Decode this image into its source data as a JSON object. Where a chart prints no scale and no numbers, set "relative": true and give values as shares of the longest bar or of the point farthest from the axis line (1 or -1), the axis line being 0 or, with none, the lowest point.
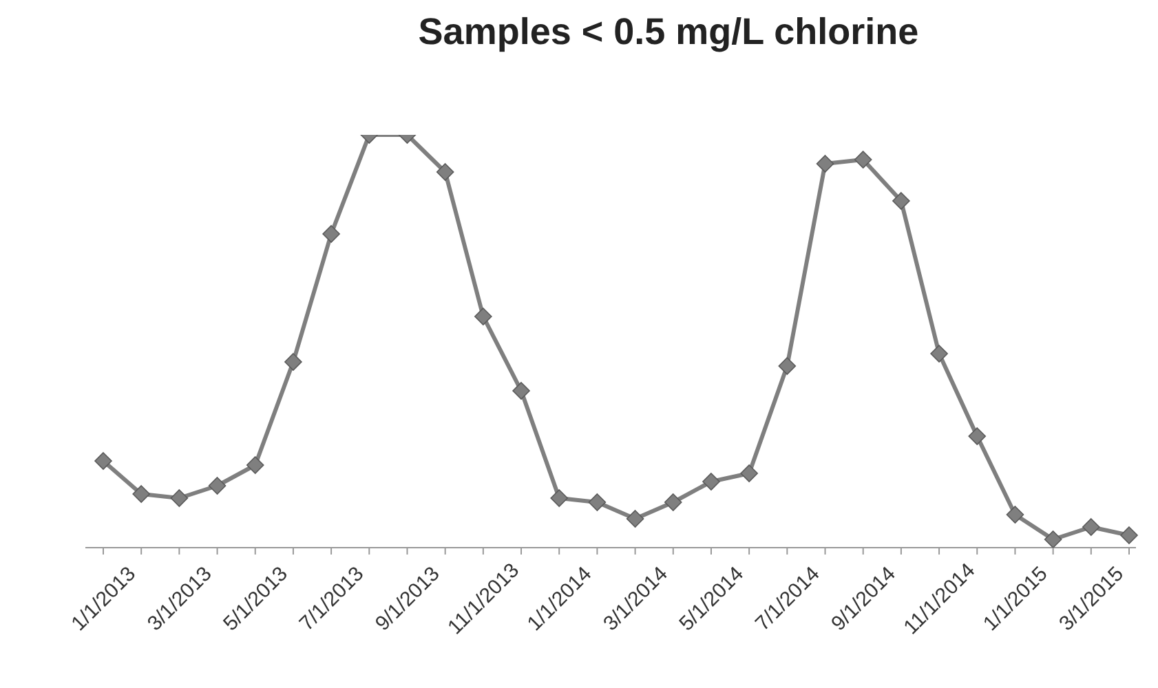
{
  "chart_data": {
    "type": "line",
    "title": "Samples < 0.5 mg/L chlorine",
    "relative": true,
    "marker": "diamond",
    "line_style": "solid",
    "grid": false,
    "legend": false,
    "categories": [
      "1/1/2013",
      null,
      "3/1/2013",
      null,
      "5/1/2013",
      null,
      "7/1/2013",
      null,
      "9/1/2013",
      null,
      "11/1/2013",
      null,
      "1/1/2014",
      null,
      "3/1/2014",
      null,
      "5/1/2014",
      null,
      "7/1/2014",
      null,
      "9/1/2014",
      null,
      "11/1/2014",
      null,
      "1/1/2015",
      null,
      "3/1/2015",
      null
    ],
    "series": [
      {
        "color": "#7f7f7f",
        "values": [
          0.21,
          0.13,
          0.12,
          0.15,
          0.2,
          0.45,
          0.76,
          1,
          1,
          0.91,
          0.56,
          0.38,
          0.12,
          0.11,
          0.07,
          0.11,
          0.16,
          0.18,
          0.44,
          0.93,
          0.94,
          0.84,
          0.47,
          0.27,
          0.08,
          0.02,
          0.05,
          0.03
        ]
      }
    ]
  }
}
